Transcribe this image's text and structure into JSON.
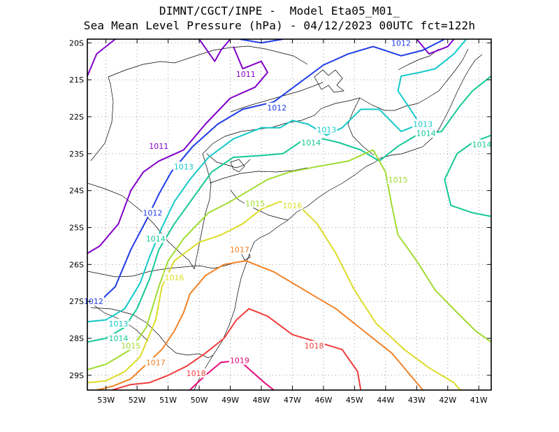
{
  "chart_data": {
    "type": "contour",
    "title": "DIMNT/CGCT/INPE -  Model Eta05_M01_",
    "subtitle": "Sea Mean Level Pressure (hPa) - 04/12/2023 00UTC fct=122h",
    "variable": "Sea Mean Level Pressure",
    "units": "hPa",
    "xlabel": "",
    "ylabel": "",
    "xlim": [
      -53.6,
      -40.6
    ],
    "ylim": [
      -29.4,
      -19.9
    ],
    "grid": true,
    "x_ticks": [
      {
        "value": -53,
        "label": "53W"
      },
      {
        "value": -52,
        "label": "52W"
      },
      {
        "value": -51,
        "label": "51W"
      },
      {
        "value": -50,
        "label": "50W"
      },
      {
        "value": -49,
        "label": "49W"
      },
      {
        "value": -48,
        "label": "48W"
      },
      {
        "value": -47,
        "label": "47W"
      },
      {
        "value": -46,
        "label": "46W"
      },
      {
        "value": -45,
        "label": "45W"
      },
      {
        "value": -44,
        "label": "44W"
      },
      {
        "value": -43,
        "label": "43W"
      },
      {
        "value": -42,
        "label": "42W"
      },
      {
        "value": -41,
        "label": "41W"
      }
    ],
    "y_ticks": [
      {
        "value": -20,
        "label": "20S"
      },
      {
        "value": -21,
        "label": "21S"
      },
      {
        "value": -22,
        "label": "22S"
      },
      {
        "value": -23,
        "label": "23S"
      },
      {
        "value": -24,
        "label": "24S"
      },
      {
        "value": -25,
        "label": "25S"
      },
      {
        "value": -26,
        "label": "26S"
      },
      {
        "value": -27,
        "label": "27S"
      },
      {
        "value": -28,
        "label": "28S"
      },
      {
        "value": -29,
        "label": "29S"
      }
    ],
    "isobars": [
      {
        "level": 1011,
        "color": "#8000c8",
        "lines": [
          [
            [
              -53.6,
              -25.7
            ],
            [
              -53.2,
              -25.5
            ],
            [
              -52.6,
              -24.9
            ],
            [
              -52.2,
              -24.0
            ],
            [
              -51.8,
              -23.5
            ],
            [
              -51.3,
              -23.2
            ],
            [
              -50.5,
              -22.9
            ],
            [
              -49.8,
              -22.2
            ],
            [
              -49.0,
              -21.5
            ],
            [
              -48.2,
              -21.2
            ],
            [
              -47.8,
              -20.8
            ],
            [
              -48.0,
              -20.5
            ],
            [
              -48.6,
              -20.7
            ],
            [
              -48.9,
              -20.1
            ]
          ],
          [
            [
              -53.6,
              -20.9
            ],
            [
              -53.3,
              -20.3
            ],
            [
              -52.7,
              -19.9
            ]
          ],
          [
            [
              -50.0,
              -19.9
            ],
            [
              -49.5,
              -20.5
            ],
            [
              -49.3,
              -20.2
            ],
            [
              -49.0,
              -19.9
            ]
          ],
          [
            [
              -43.0,
              -19.9
            ],
            [
              -42.6,
              -20.3
            ],
            [
              -42.0,
              -20.1
            ],
            [
              -41.8,
              -19.9
            ]
          ]
        ],
        "labels": [
          [
            -48.5,
            -20.85
          ],
          [
            -51.3,
            -22.8
          ]
        ]
      },
      {
        "level": 1012,
        "color": "#1e3ce6",
        "lines": [
          [
            [
              -53.6,
              -27.05
            ],
            [
              -53.2,
              -27.0
            ],
            [
              -52.7,
              -26.6
            ],
            [
              -52.2,
              -25.6
            ],
            [
              -51.7,
              -24.8
            ],
            [
              -51.3,
              -24.1
            ],
            [
              -50.9,
              -23.5
            ],
            [
              -50.2,
              -22.8
            ],
            [
              -49.4,
              -22.2
            ],
            [
              -48.6,
              -21.8
            ],
            [
              -47.6,
              -21.6
            ],
            [
              -46.8,
              -21.1
            ],
            [
              -46.0,
              -20.6
            ],
            [
              -45.2,
              -20.3
            ],
            [
              -44.4,
              -20.1
            ],
            [
              -43.5,
              -20.35
            ],
            [
              -42.8,
              -20.2
            ],
            [
              -42.1,
              -19.9
            ]
          ],
          [
            [
              -48.7,
              -19.9
            ],
            [
              -48.0,
              -20.0
            ],
            [
              -47.3,
              -19.9
            ]
          ]
        ],
        "labels": [
          [
            -53.4,
            -27.0
          ],
          [
            -51.5,
            -24.6
          ],
          [
            -47.5,
            -21.75
          ],
          [
            -43.5,
            -20.0
          ]
        ]
      },
      {
        "level": 1013,
        "color": "#14c8c8",
        "lines": [
          [
            [
              -53.6,
              -27.55
            ],
            [
              -53.0,
              -27.5
            ],
            [
              -52.4,
              -27.2
            ],
            [
              -51.9,
              -26.5
            ],
            [
              -51.6,
              -25.8
            ],
            [
              -51.2,
              -25.0
            ],
            [
              -50.8,
              -24.3
            ],
            [
              -50.3,
              -23.7
            ],
            [
              -49.7,
              -23.1
            ],
            [
              -48.9,
              -22.6
            ],
            [
              -48.0,
              -22.3
            ],
            [
              -47.4,
              -22.3
            ],
            [
              -47.0,
              -22.1
            ],
            [
              -46.5,
              -22.2
            ],
            [
              -45.9,
              -22.5
            ],
            [
              -45.4,
              -22.3
            ],
            [
              -44.8,
              -21.8
            ],
            [
              -44.2,
              -21.8
            ],
            [
              -43.5,
              -22.4
            ],
            [
              -42.9,
              -22.2
            ],
            [
              -43.2,
              -21.8
            ],
            [
              -43.6,
              -21.3
            ],
            [
              -43.5,
              -20.9
            ],
            [
              -42.9,
              -20.8
            ],
            [
              -42.4,
              -20.7
            ],
            [
              -41.8,
              -20.3
            ],
            [
              -41.4,
              -19.9
            ]
          ]
        ],
        "labels": [
          [
            -52.6,
            -27.6
          ],
          [
            -50.5,
            -23.35
          ],
          [
            -45.9,
            -22.35
          ],
          [
            -42.8,
            -22.2
          ]
        ]
      },
      {
        "level": 1014,
        "color": "#14c896",
        "lines": [
          [
            [
              -53.6,
              -28.1
            ],
            [
              -53.0,
              -28.0
            ],
            [
              -52.4,
              -27.7
            ],
            [
              -52.0,
              -27.2
            ],
            [
              -51.6,
              -26.4
            ],
            [
              -51.3,
              -25.6
            ],
            [
              -50.8,
              -24.9
            ],
            [
              -50.2,
              -24.2
            ],
            [
              -49.6,
              -23.5
            ],
            [
              -48.9,
              -23.1
            ],
            [
              -48.0,
              -23.05
            ],
            [
              -47.3,
              -23.0
            ],
            [
              -46.6,
              -22.6
            ],
            [
              -46.0,
              -22.6
            ],
            [
              -45.5,
              -22.7
            ],
            [
              -44.8,
              -22.9
            ],
            [
              -44.2,
              -23.2
            ],
            [
              -43.6,
              -22.8
            ],
            [
              -43.0,
              -22.5
            ],
            [
              -42.2,
              -22.4
            ],
            [
              -41.6,
              -21.7
            ],
            [
              -41.2,
              -21.3
            ],
            [
              -40.6,
              -20.9
            ]
          ],
          [
            [
              -40.6,
              -24.7
            ],
            [
              -41.2,
              -24.6
            ],
            [
              -41.9,
              -24.4
            ],
            [
              -42.1,
              -23.7
            ],
            [
              -41.7,
              -23.0
            ],
            [
              -41.2,
              -22.7
            ],
            [
              -40.6,
              -22.5
            ]
          ]
        ],
        "labels": [
          [
            -52.6,
            -28.0
          ],
          [
            -51.4,
            -25.3
          ],
          [
            -46.4,
            -22.7
          ],
          [
            -42.7,
            -22.45
          ],
          [
            -40.9,
            -22.75
          ]
        ]
      },
      {
        "level": 1015,
        "color": "#a0dc32",
        "lines": [
          [
            [
              -53.6,
              -28.85
            ],
            [
              -53.0,
              -28.7
            ],
            [
              -52.2,
              -28.3
            ],
            [
              -51.7,
              -27.7
            ],
            [
              -51.3,
              -26.6
            ],
            [
              -51.0,
              -25.9
            ],
            [
              -50.5,
              -25.3
            ],
            [
              -49.7,
              -24.6
            ],
            [
              -49.0,
              -24.3
            ],
            [
              -48.4,
              -24.0
            ],
            [
              -47.8,
              -23.7
            ],
            [
              -47.1,
              -23.5
            ],
            [
              -46.2,
              -23.35
            ],
            [
              -45.2,
              -23.2
            ],
            [
              -44.4,
              -22.9
            ],
            [
              -44.0,
              -23.5
            ],
            [
              -43.8,
              -24.4
            ],
            [
              -43.6,
              -25.2
            ],
            [
              -43.0,
              -25.9
            ],
            [
              -42.4,
              -26.7
            ],
            [
              -41.7,
              -27.3
            ],
            [
              -41.1,
              -27.8
            ],
            [
              -40.6,
              -28.1
            ]
          ]
        ],
        "labels": [
          [
            -52.2,
            -28.2
          ],
          [
            -48.2,
            -24.35
          ],
          [
            -43.6,
            -23.7
          ]
        ]
      },
      {
        "level": 1016,
        "color": "#dcdc28",
        "lines": [
          [
            [
              -53.6,
              -29.2
            ],
            [
              -53.0,
              -29.15
            ],
            [
              -52.4,
              -28.9
            ],
            [
              -51.9,
              -28.5
            ],
            [
              -51.4,
              -27.5
            ],
            [
              -51.2,
              -26.6
            ],
            [
              -50.8,
              -25.9
            ],
            [
              -50.0,
              -25.4
            ],
            [
              -49.3,
              -25.2
            ],
            [
              -48.6,
              -24.9
            ],
            [
              -48.0,
              -24.5
            ],
            [
              -47.4,
              -24.3
            ],
            [
              -46.8,
              -24.4
            ],
            [
              -46.2,
              -24.9
            ],
            [
              -45.6,
              -25.7
            ],
            [
              -45.0,
              -26.7
            ],
            [
              -44.3,
              -27.6
            ],
            [
              -43.4,
              -28.3
            ],
            [
              -42.6,
              -28.8
            ],
            [
              -41.8,
              -29.2
            ],
            [
              -41.6,
              -29.4
            ]
          ]
        ],
        "labels": [
          [
            -50.8,
            -26.35
          ],
          [
            -47.0,
            -24.4
          ]
        ]
      },
      {
        "level": 1017,
        "color": "#f08228",
        "lines": [
          [
            [
              -53.3,
              -29.4
            ],
            [
              -52.8,
              -29.3
            ],
            [
              -52.2,
              -29.1
            ],
            [
              -51.7,
              -28.7
            ],
            [
              -51.2,
              -28.3
            ],
            [
              -50.8,
              -27.8
            ],
            [
              -50.5,
              -27.3
            ],
            [
              -50.3,
              -26.8
            ],
            [
              -49.8,
              -26.3
            ],
            [
              -49.2,
              -26.0
            ],
            [
              -48.5,
              -25.9
            ],
            [
              -47.6,
              -26.2
            ],
            [
              -46.6,
              -26.7
            ],
            [
              -45.6,
              -27.2
            ],
            [
              -44.7,
              -27.8
            ],
            [
              -43.8,
              -28.4
            ],
            [
              -43.2,
              -29.0
            ],
            [
              -42.8,
              -29.4
            ]
          ]
        ],
        "labels": [
          [
            -51.4,
            -28.65
          ],
          [
            -48.7,
            -25.6
          ]
        ]
      },
      {
        "level": 1018,
        "color": "#f03c3c",
        "lines": [
          [
            [
              -52.8,
              -29.4
            ],
            [
              -52.2,
              -29.25
            ],
            [
              -51.6,
              -29.2
            ],
            [
              -51.0,
              -29.0
            ],
            [
              -50.4,
              -28.75
            ],
            [
              -49.8,
              -28.4
            ],
            [
              -49.2,
              -28.0
            ],
            [
              -48.8,
              -27.5
            ],
            [
              -48.4,
              -27.2
            ],
            [
              -47.8,
              -27.4
            ],
            [
              -47.0,
              -27.9
            ],
            [
              -46.2,
              -28.1
            ],
            [
              -45.4,
              -28.3
            ],
            [
              -44.9,
              -28.9
            ],
            [
              -44.8,
              -29.4
            ]
          ]
        ],
        "labels": [
          [
            -50.1,
            -28.95
          ],
          [
            -46.3,
            -28.2
          ]
        ]
      },
      {
        "level": 1019,
        "color": "#e60a7d",
        "lines": [
          [
            [
              -50.3,
              -29.4
            ],
            [
              -49.8,
              -29.0
            ],
            [
              -49.3,
              -28.65
            ],
            [
              -48.7,
              -28.6
            ],
            [
              -48.3,
              -28.9
            ],
            [
              -47.9,
              -29.2
            ],
            [
              -47.6,
              -29.4
            ]
          ]
        ],
        "labels": [
          [
            -48.7,
            -28.6
          ]
        ]
      }
    ]
  }
}
